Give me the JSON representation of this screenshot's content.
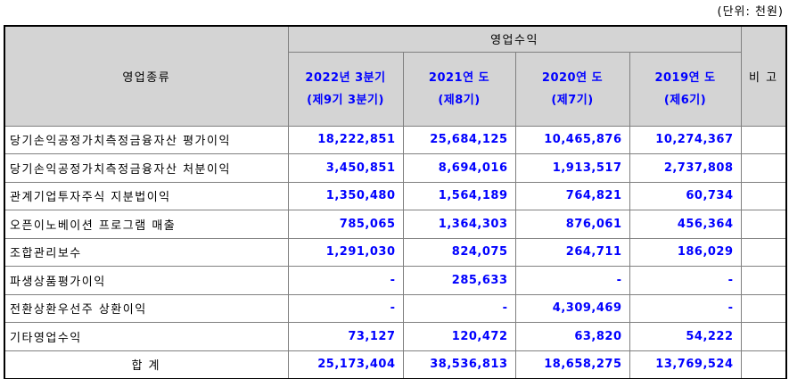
{
  "unit_label": "(단위: 천원)",
  "table": {
    "category_header": "영업종류",
    "revenue_group_header": "영업수익",
    "note_header": "비 고",
    "period_headers": [
      {
        "line1": "2022년 3분기",
        "line2": "(제9기 3분기)"
      },
      {
        "line1": "2021연 도",
        "line2": "(제8기)"
      },
      {
        "line1": "2020연 도",
        "line2": "(제7기)"
      },
      {
        "line1": "2019연 도",
        "line2": "(제6기)"
      }
    ],
    "rows": [
      {
        "label": "당기손익공정가치측정금융자산 평가이익",
        "values": [
          "18,222,851",
          "25,684,125",
          "10,465,876",
          "10,274,367"
        ],
        "note": ""
      },
      {
        "label": "당기손익공정가치측정금융자산 처분이익",
        "values": [
          "3,450,851",
          "8,694,016",
          "1,913,517",
          "2,737,808"
        ],
        "note": ""
      },
      {
        "label": "관계기업투자주식 지분법이익",
        "values": [
          "1,350,480",
          "1,564,189",
          "764,821",
          "60,734"
        ],
        "note": ""
      },
      {
        "label": "오픈이노베이션 프로그램 매출",
        "values": [
          "785,065",
          "1,364,303",
          "876,061",
          "456,364"
        ],
        "note": ""
      },
      {
        "label": "조합관리보수",
        "values": [
          "1,291,030",
          "824,075",
          "264,711",
          "186,029"
        ],
        "note": ""
      },
      {
        "label": "파생상품평가이익",
        "values": [
          "-",
          "285,633",
          "-",
          "-"
        ],
        "note": ""
      },
      {
        "label": "전환상환우선주 상환이익",
        "values": [
          "-",
          "-",
          "4,309,469",
          "-"
        ],
        "note": ""
      },
      {
        "label": "기타영업수익",
        "values": [
          "73,127",
          "120,472",
          "63,820",
          "54,222"
        ],
        "note": ""
      }
    ],
    "total_row": {
      "label": "합 계",
      "values": [
        "25,173,404",
        "38,536,813",
        "18,658,275",
        "13,769,524"
      ],
      "note": ""
    }
  },
  "colors": {
    "header_bg": "#d4d4d4",
    "value_text": "#0000ff",
    "label_text": "#000000",
    "border_inner": "#808080",
    "border_outer": "#000000",
    "page_bg": "#ffffff"
  }
}
